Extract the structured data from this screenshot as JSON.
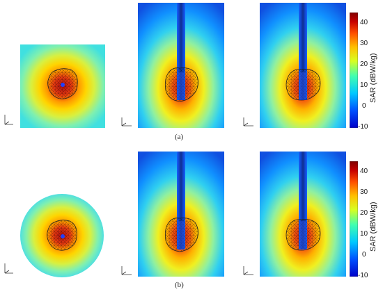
{
  "captions": {
    "a": "(a)",
    "b": "(b)"
  },
  "colorbar": {
    "title": "SAR (dBW/kg)",
    "ticks": [
      "40",
      "30",
      "20",
      "10",
      "0",
      "-10"
    ],
    "range": [
      -10,
      45
    ],
    "colors": [
      "#0000c8",
      "#0050ff",
      "#00c8ff",
      "#40ffb0",
      "#d8ff20",
      "#ffc000",
      "#ff5000",
      "#c80000",
      "#800000"
    ]
  }
}
